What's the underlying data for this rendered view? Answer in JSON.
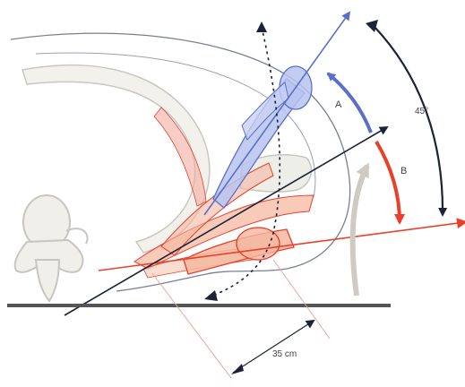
{
  "labels": {
    "arc_a": "A",
    "arc_b": "B",
    "angle": "45°",
    "distance": "35 cm"
  },
  "colors": {
    "blue": "#5a6fc8",
    "blue_fill": "#b9c3ef",
    "red": "#e8402a",
    "red_fill": "#f5b8a0",
    "dark": "#1c2238",
    "bone": "#d8d8d2",
    "bone_fill": "#f0efea",
    "gray_arrow": "#cfcbc2"
  }
}
